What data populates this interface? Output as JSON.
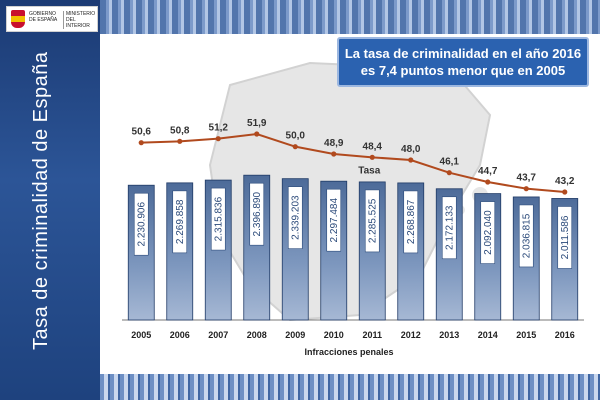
{
  "branding": {
    "gobierno": "GOBIERNO DE ESPAÑA",
    "ministerio": "MINISTERIO DEL INTERIOR"
  },
  "sidebar_title": "Tasa de criminalidad de España",
  "headline": {
    "line1": "La tasa de criminalidad en el año 2016",
    "line2": "es 7,4 puntos menor que en 2005"
  },
  "colors": {
    "bar": "#7d97be",
    "line": "#b14a1e",
    "headline_bg": "#2b62b0"
  },
  "chart_data": {
    "type": "bar",
    "categories": [
      "2005",
      "2006",
      "2007",
      "2008",
      "2009",
      "2010",
      "2011",
      "2012",
      "2013",
      "2014",
      "2015",
      "2016"
    ],
    "series": [
      {
        "name": "Infracciones penales",
        "type": "bar",
        "values": [
          2230906,
          2269858,
          2315836,
          2396890,
          2339203,
          2297484,
          2285525,
          2268867,
          2172133,
          2092040,
          2036815,
          2011586
        ],
        "labels": [
          "2.230.906",
          "2.269.858",
          "2.315.836",
          "2.396.890",
          "2.339.203",
          "2.297.484",
          "2.285.525",
          "2.268.867",
          "2.172.133",
          "2.092.040",
          "2.036.815",
          "2.011.586"
        ]
      },
      {
        "name": "Tasa",
        "type": "line",
        "values": [
          50.6,
          50.8,
          51.2,
          51.9,
          50.0,
          48.9,
          48.4,
          48.0,
          46.1,
          44.7,
          43.7,
          43.2
        ],
        "labels": [
          "50,6",
          "50,8",
          "51,2",
          "51,9",
          "50,0",
          "48,9",
          "48,4",
          "48,0",
          "46,1",
          "44,7",
          "43,7",
          "43,2"
        ]
      }
    ],
    "bar_ylim": [
      0,
      2400000
    ],
    "line_ylim": [
      30,
      54
    ],
    "legend": "inline labels",
    "grid": false
  }
}
